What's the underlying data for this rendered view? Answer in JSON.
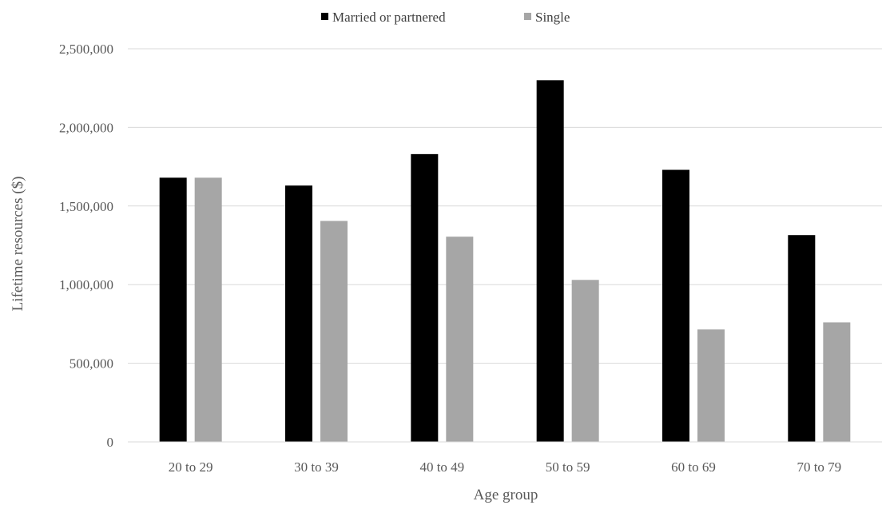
{
  "chart_data": {
    "type": "bar",
    "title": "",
    "xlabel": "Age group",
    "ylabel": "Lifetime resources ($)",
    "categories": [
      "20 to 29",
      "30 to 39",
      "40 to 49",
      "50 to 59",
      "60 to 69",
      "70 to 79"
    ],
    "series": [
      {
        "name": "Married or partnered",
        "color": "#000000",
        "values": [
          1680000,
          1630000,
          1830000,
          2300000,
          1730000,
          1315000
        ]
      },
      {
        "name": "Single",
        "color": "#a6a6a6",
        "values": [
          1680000,
          1405000,
          1305000,
          1030000,
          715000,
          760000
        ]
      }
    ],
    "ylim": [
      0,
      2500000
    ],
    "yticks": [
      0,
      500000,
      1000000,
      1500000,
      2000000,
      2500000
    ],
    "ytick_labels": [
      "0",
      "500,000",
      "1,000,000",
      "1,500,000",
      "2,000,000",
      "2,500,000"
    ],
    "grid": true,
    "gridline_color": "#d9d9d9",
    "legend_position": "top-center"
  }
}
